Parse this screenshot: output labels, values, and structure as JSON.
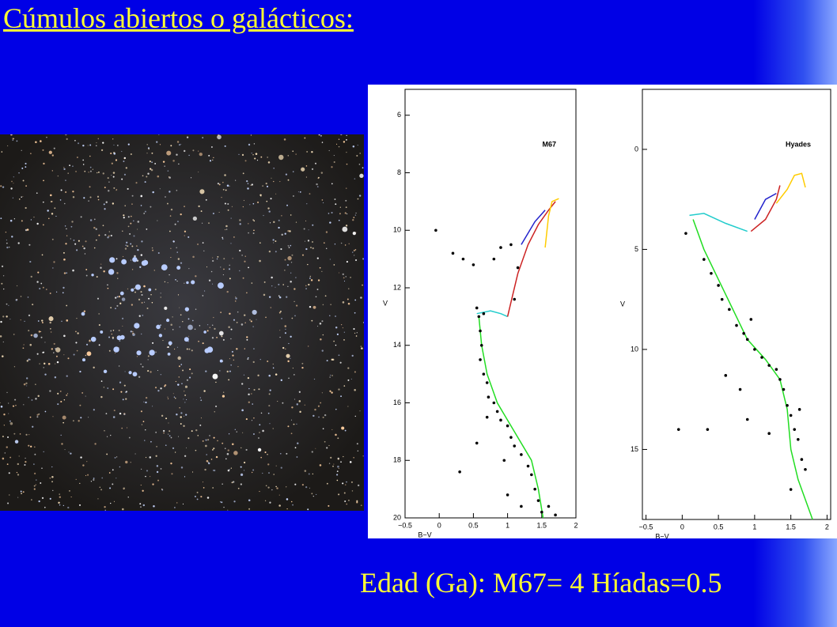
{
  "title": "Cúmulos abiertos o galácticos:",
  "caption": "Edad (Ga): M67= 4 Híadas=0.5",
  "chart_data": [
    {
      "type": "scatter",
      "title": "M67",
      "x_label": "B−V",
      "y_label": "V",
      "xlim": [
        -0.5,
        2
      ],
      "ylim": [
        20,
        5.1
      ],
      "xticks": [
        {
          "value": -0.5,
          "label": "−0.5"
        },
        0,
        0.5,
        1,
        1.5,
        2
      ],
      "yticks": [
        6,
        8,
        10,
        12,
        14,
        16,
        18,
        20
      ],
      "points": {
        "color": "#000000",
        "x": [
          -0.05,
          0.2,
          0.35,
          0.55,
          0.58,
          0.6,
          0.62,
          0.6,
          0.65,
          0.7,
          0.72,
          0.8,
          0.85,
          0.9,
          1.0,
          1.05,
          1.1,
          1.2,
          1.3,
          1.35,
          1.4,
          1.45,
          1.5,
          1.6,
          1.7,
          0.9,
          0.8,
          1.05,
          1.15,
          0.3,
          0.55,
          1.0,
          1.2,
          0.7,
          0.95,
          1.1,
          0.65,
          0.5
        ],
        "y": [
          10.0,
          10.8,
          11.0,
          12.7,
          13.0,
          13.5,
          14.0,
          14.5,
          15.0,
          15.3,
          15.8,
          16.0,
          16.3,
          16.6,
          16.8,
          17.2,
          17.5,
          17.8,
          18.2,
          18.5,
          19.0,
          19.4,
          19.8,
          19.6,
          19.9,
          10.6,
          11.0,
          10.5,
          11.3,
          18.4,
          17.4,
          19.2,
          19.6,
          16.5,
          18.0,
          12.4,
          12.9,
          11.2
        ]
      },
      "series": [
        {
          "color": "#22dd22",
          "x": [
            0.58,
            0.62,
            0.7,
            0.85,
            1.1,
            1.35,
            1.45,
            1.52
          ],
          "y": [
            13,
            14,
            15,
            16,
            17,
            18,
            19,
            20
          ]
        },
        {
          "color": "#22cccc",
          "x": [
            0.55,
            0.75,
            0.9,
            1.0
          ],
          "y": [
            12.9,
            12.8,
            12.9,
            13.0
          ]
        },
        {
          "color": "#cc2222",
          "x": [
            1.0,
            1.05,
            1.15,
            1.3,
            1.45,
            1.6,
            1.7
          ],
          "y": [
            13,
            12.5,
            11.5,
            10.5,
            9.8,
            9.3,
            9.0
          ]
        },
        {
          "color": "#2222cc",
          "x": [
            1.2,
            1.4,
            1.55
          ],
          "y": [
            10.5,
            9.7,
            9.3
          ]
        },
        {
          "color": "#ffcc00",
          "x": [
            1.55,
            1.6,
            1.65,
            1.75
          ],
          "y": [
            10.6,
            9.5,
            9.0,
            8.9
          ]
        }
      ]
    },
    {
      "type": "scatter",
      "title": "Hyades",
      "x_label": "B−V",
      "y_label": "V",
      "xlim": [
        -0.55,
        2.05
      ],
      "ylim": [
        18.5,
        -3
      ],
      "xticks": [
        {
          "value": -0.5,
          "label": "−0.5"
        },
        0,
        0.5,
        1,
        1.5,
        2
      ],
      "yticks": [
        0,
        5,
        10,
        15
      ],
      "points": {
        "color": "#000000",
        "x": [
          0.05,
          0.3,
          0.4,
          0.5,
          0.55,
          0.65,
          0.75,
          0.85,
          0.9,
          1.0,
          1.1,
          1.2,
          1.3,
          1.35,
          1.4,
          1.45,
          1.5,
          1.55,
          1.6,
          1.65,
          1.7,
          1.5,
          0.6,
          0.8,
          -0.05,
          0.35,
          0.9,
          1.2,
          1.62,
          0.95
        ],
        "y": [
          4.2,
          5.5,
          6.2,
          6.8,
          7.5,
          8.0,
          8.8,
          9.2,
          9.5,
          10.0,
          10.4,
          10.8,
          11.0,
          11.5,
          12.0,
          12.8,
          13.3,
          14.0,
          14.5,
          15.5,
          16.0,
          17.0,
          11.3,
          12.0,
          14.0,
          14.0,
          13.5,
          14.2,
          13.0,
          8.5
        ]
      },
      "series": [
        {
          "color": "#22dd22",
          "x": [
            0.15,
            0.3,
            0.5,
            0.7,
            0.9,
            1.15,
            1.35,
            1.45,
            1.5,
            1.6,
            1.8
          ],
          "y": [
            3.5,
            5,
            6.5,
            8,
            9.5,
            10.5,
            11.5,
            13,
            15,
            16.5,
            18.5
          ]
        },
        {
          "color": "#22cccc",
          "x": [
            0.1,
            0.3,
            0.6,
            0.9
          ],
          "y": [
            3.3,
            3.2,
            3.7,
            4.1
          ]
        },
        {
          "color": "#cc2222",
          "x": [
            0.95,
            1.15,
            1.3,
            1.35
          ],
          "y": [
            4.1,
            3.5,
            2.5,
            1.8
          ]
        },
        {
          "color": "#2222cc",
          "x": [
            1.0,
            1.15,
            1.3
          ],
          "y": [
            3.5,
            2.5,
            2.2
          ]
        },
        {
          "color": "#ffcc00",
          "x": [
            1.3,
            1.45,
            1.55,
            1.65,
            1.7
          ],
          "y": [
            2.7,
            2.0,
            1.3,
            1.2,
            1.9
          ]
        }
      ]
    }
  ]
}
